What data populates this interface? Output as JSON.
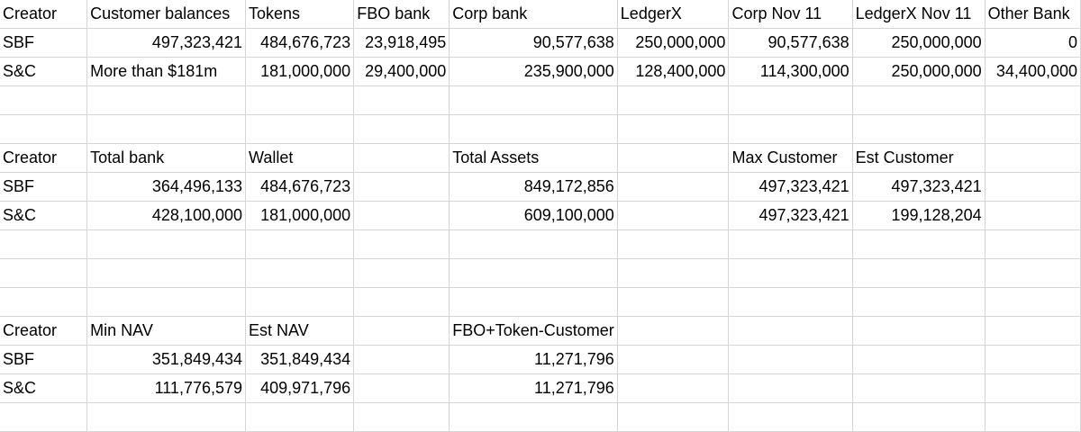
{
  "rows": [
    [
      {
        "v": "Creator"
      },
      {
        "v": "Customer balances"
      },
      {
        "v": "Tokens"
      },
      {
        "v": "FBO bank"
      },
      {
        "v": "Corp bank"
      },
      {
        "v": "LedgerX"
      },
      {
        "v": "Corp Nov 11"
      },
      {
        "v": "LedgerX Nov 11"
      },
      {
        "v": "Other Bank"
      }
    ],
    [
      {
        "v": "SBF"
      },
      {
        "v": "497,323,421",
        "n": true
      },
      {
        "v": "484,676,723",
        "n": true
      },
      {
        "v": "23,918,495",
        "n": true
      },
      {
        "v": "90,577,638",
        "n": true
      },
      {
        "v": "250,000,000",
        "n": true
      },
      {
        "v": "90,577,638",
        "n": true
      },
      {
        "v": "250,000,000",
        "n": true
      },
      {
        "v": "0",
        "n": true
      }
    ],
    [
      {
        "v": "S&C"
      },
      {
        "v": "More than $181m"
      },
      {
        "v": "181,000,000",
        "n": true
      },
      {
        "v": "29,400,000",
        "n": true
      },
      {
        "v": "235,900,000",
        "n": true
      },
      {
        "v": "128,400,000",
        "n": true
      },
      {
        "v": "114,300,000",
        "n": true
      },
      {
        "v": "250,000,000",
        "n": true
      },
      {
        "v": "34,400,000",
        "n": true
      }
    ],
    [
      {
        "v": ""
      },
      {
        "v": ""
      },
      {
        "v": ""
      },
      {
        "v": ""
      },
      {
        "v": ""
      },
      {
        "v": ""
      },
      {
        "v": ""
      },
      {
        "v": ""
      },
      {
        "v": ""
      }
    ],
    [
      {
        "v": ""
      },
      {
        "v": ""
      },
      {
        "v": ""
      },
      {
        "v": ""
      },
      {
        "v": ""
      },
      {
        "v": ""
      },
      {
        "v": ""
      },
      {
        "v": ""
      },
      {
        "v": ""
      }
    ],
    [
      {
        "v": "Creator"
      },
      {
        "v": "Total bank"
      },
      {
        "v": "Wallet"
      },
      {
        "v": ""
      },
      {
        "v": "Total Assets"
      },
      {
        "v": ""
      },
      {
        "v": "Max Customer"
      },
      {
        "v": "Est Customer"
      },
      {
        "v": ""
      }
    ],
    [
      {
        "v": "SBF"
      },
      {
        "v": "364,496,133",
        "n": true
      },
      {
        "v": "484,676,723",
        "n": true
      },
      {
        "v": ""
      },
      {
        "v": "849,172,856",
        "n": true
      },
      {
        "v": ""
      },
      {
        "v": "497,323,421",
        "n": true
      },
      {
        "v": "497,323,421",
        "n": true
      },
      {
        "v": ""
      }
    ],
    [
      {
        "v": "S&C"
      },
      {
        "v": "428,100,000",
        "n": true
      },
      {
        "v": "181,000,000",
        "n": true
      },
      {
        "v": ""
      },
      {
        "v": "609,100,000",
        "n": true
      },
      {
        "v": ""
      },
      {
        "v": "497,323,421",
        "n": true
      },
      {
        "v": "199,128,204",
        "n": true
      },
      {
        "v": ""
      }
    ],
    [
      {
        "v": ""
      },
      {
        "v": ""
      },
      {
        "v": ""
      },
      {
        "v": ""
      },
      {
        "v": ""
      },
      {
        "v": ""
      },
      {
        "v": ""
      },
      {
        "v": ""
      },
      {
        "v": ""
      }
    ],
    [
      {
        "v": ""
      },
      {
        "v": ""
      },
      {
        "v": ""
      },
      {
        "v": ""
      },
      {
        "v": ""
      },
      {
        "v": ""
      },
      {
        "v": ""
      },
      {
        "v": ""
      },
      {
        "v": ""
      }
    ],
    [
      {
        "v": ""
      },
      {
        "v": ""
      },
      {
        "v": ""
      },
      {
        "v": ""
      },
      {
        "v": ""
      },
      {
        "v": ""
      },
      {
        "v": ""
      },
      {
        "v": ""
      },
      {
        "v": ""
      }
    ],
    [
      {
        "v": "Creator"
      },
      {
        "v": "Min NAV"
      },
      {
        "v": "Est NAV"
      },
      {
        "v": ""
      },
      {
        "v": "FBO+Token-Customer"
      },
      {
        "v": ""
      },
      {
        "v": ""
      },
      {
        "v": ""
      },
      {
        "v": ""
      }
    ],
    [
      {
        "v": "SBF"
      },
      {
        "v": "351,849,434",
        "n": true
      },
      {
        "v": "351,849,434",
        "n": true
      },
      {
        "v": ""
      },
      {
        "v": "11,271,796",
        "n": true
      },
      {
        "v": ""
      },
      {
        "v": ""
      },
      {
        "v": ""
      },
      {
        "v": ""
      }
    ],
    [
      {
        "v": "S&C"
      },
      {
        "v": "111,776,579",
        "n": true
      },
      {
        "v": "409,971,796",
        "n": true
      },
      {
        "v": ""
      },
      {
        "v": "11,271,796",
        "n": true
      },
      {
        "v": ""
      },
      {
        "v": ""
      },
      {
        "v": ""
      },
      {
        "v": ""
      }
    ],
    [
      {
        "v": ""
      },
      {
        "v": ""
      },
      {
        "v": ""
      },
      {
        "v": ""
      },
      {
        "v": ""
      },
      {
        "v": ""
      },
      {
        "v": ""
      },
      {
        "v": ""
      },
      {
        "v": ""
      }
    ]
  ]
}
